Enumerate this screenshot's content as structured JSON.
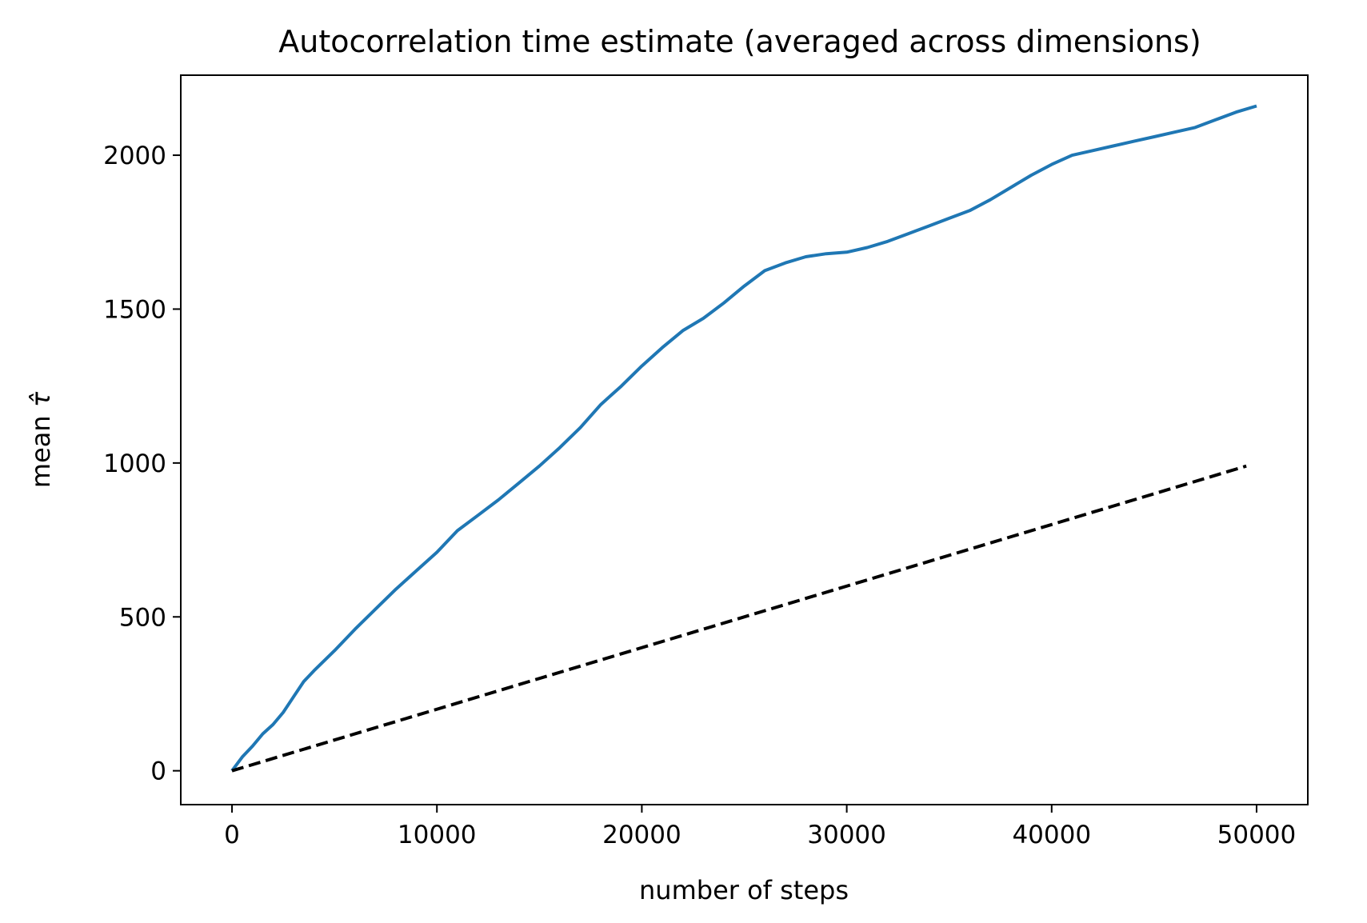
{
  "chart_data": {
    "type": "line",
    "title": "Autocorrelation time estimate (averaged across dimensions)",
    "xlabel": "number of steps",
    "ylabel_text": "mean ",
    "ylabel_symbol": "τ̂",
    "xlim": [
      -2500,
      52500
    ],
    "ylim": [
      -110,
      2260
    ],
    "xticks": [
      0,
      10000,
      20000,
      30000,
      40000,
      50000
    ],
    "xtick_labels": [
      "0",
      "10000",
      "20000",
      "30000",
      "40000",
      "50000"
    ],
    "yticks": [
      0,
      500,
      1000,
      1500,
      2000
    ],
    "ytick_labels": [
      "0",
      "500",
      "1000",
      "1500",
      "2000"
    ],
    "grid": false,
    "series": [
      {
        "color": "#1f77b4",
        "style": "solid",
        "x": [
          0,
          500,
          1000,
          1500,
          2000,
          2500,
          3000,
          3500,
          4000,
          5000,
          6000,
          7000,
          8000,
          9000,
          10000,
          11000,
          12000,
          13000,
          14000,
          15000,
          16000,
          17000,
          18000,
          19000,
          20000,
          21000,
          22000,
          23000,
          24000,
          25000,
          26000,
          27000,
          28000,
          29000,
          30000,
          31000,
          32000,
          33000,
          34000,
          35000,
          36000,
          37000,
          38000,
          39000,
          40000,
          41000,
          42000,
          43000,
          44000,
          45000,
          46000,
          47000,
          48000,
          49000,
          50000
        ],
        "y": [
          0,
          45,
          80,
          120,
          150,
          190,
          240,
          290,
          325,
          390,
          460,
          525,
          590,
          650,
          710,
          780,
          830,
          880,
          935,
          990,
          1050,
          1115,
          1190,
          1250,
          1315,
          1375,
          1430,
          1470,
          1520,
          1575,
          1625,
          1650,
          1670,
          1680,
          1685,
          1700,
          1720,
          1745,
          1770,
          1795,
          1820,
          1855,
          1895,
          1935,
          1970,
          2000,
          2015,
          2030,
          2045,
          2060,
          2075,
          2090,
          2115,
          2140,
          2160
        ]
      },
      {
        "color": "#000000",
        "style": "dashed",
        "x": [
          0,
          49500
        ],
        "y": [
          0,
          990
        ]
      }
    ]
  }
}
